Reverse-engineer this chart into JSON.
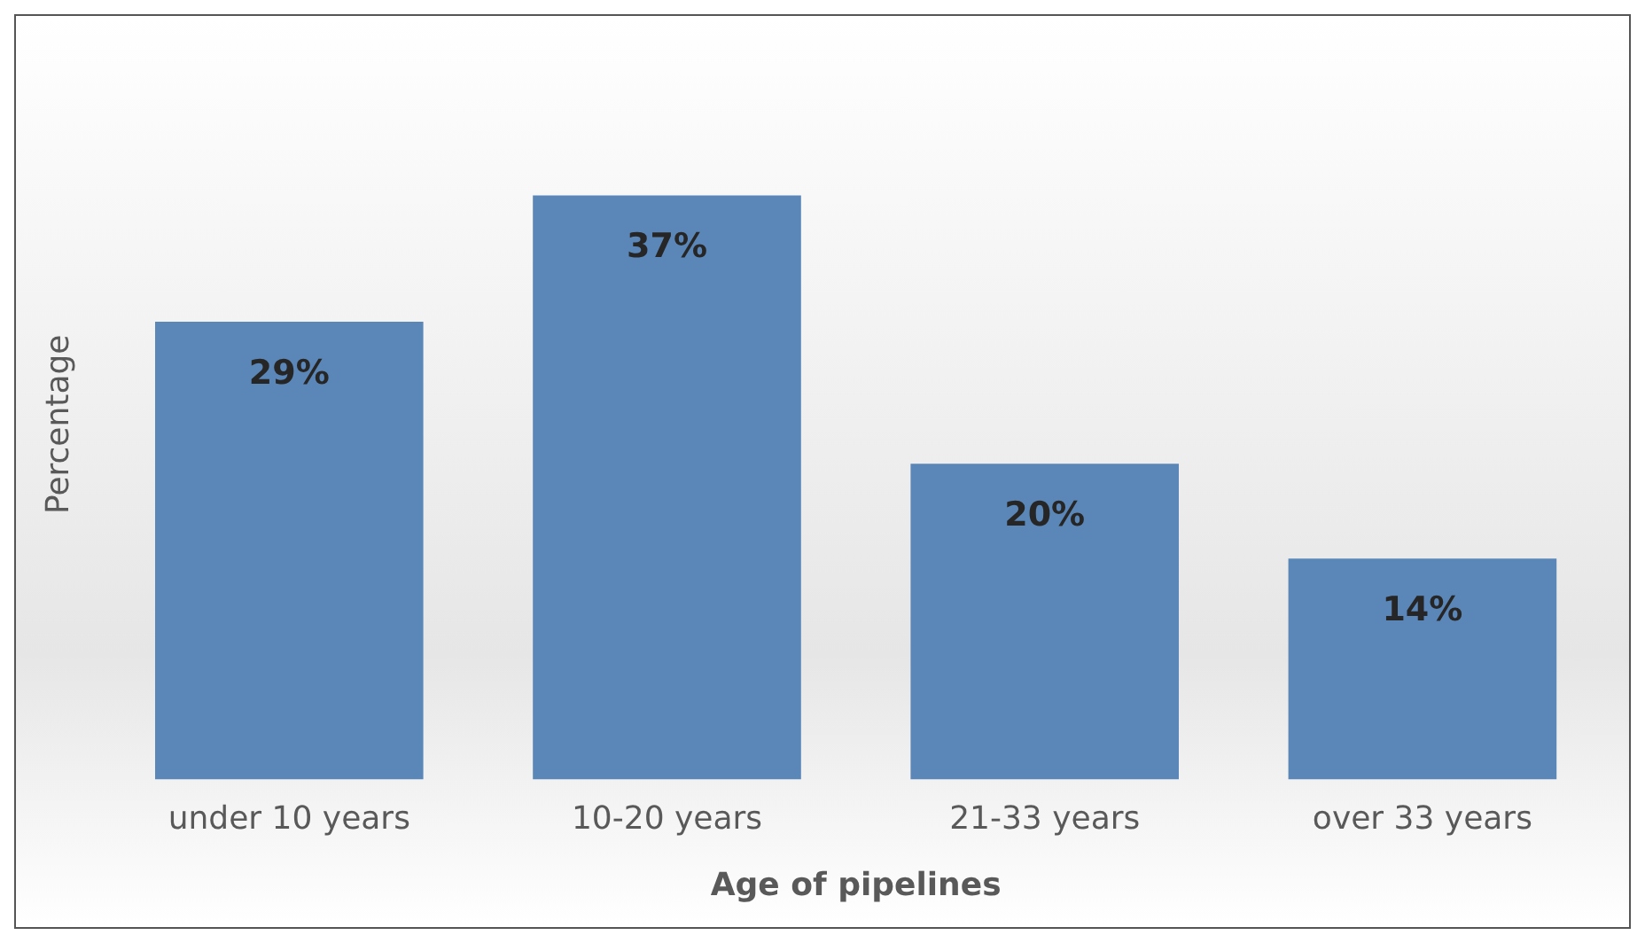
{
  "chart_data": {
    "type": "bar",
    "xlabel": "Age of pipelines",
    "ylabel": "Percentage",
    "categories": [
      "under 10 years",
      "10-20 years",
      "21-33 years",
      "over 33 years"
    ],
    "values": [
      29,
      37,
      20,
      14
    ],
    "value_labels": [
      "29%",
      "37%",
      "20%",
      "14%"
    ],
    "color": "#5b87b8",
    "grid": false,
    "legend": false
  }
}
